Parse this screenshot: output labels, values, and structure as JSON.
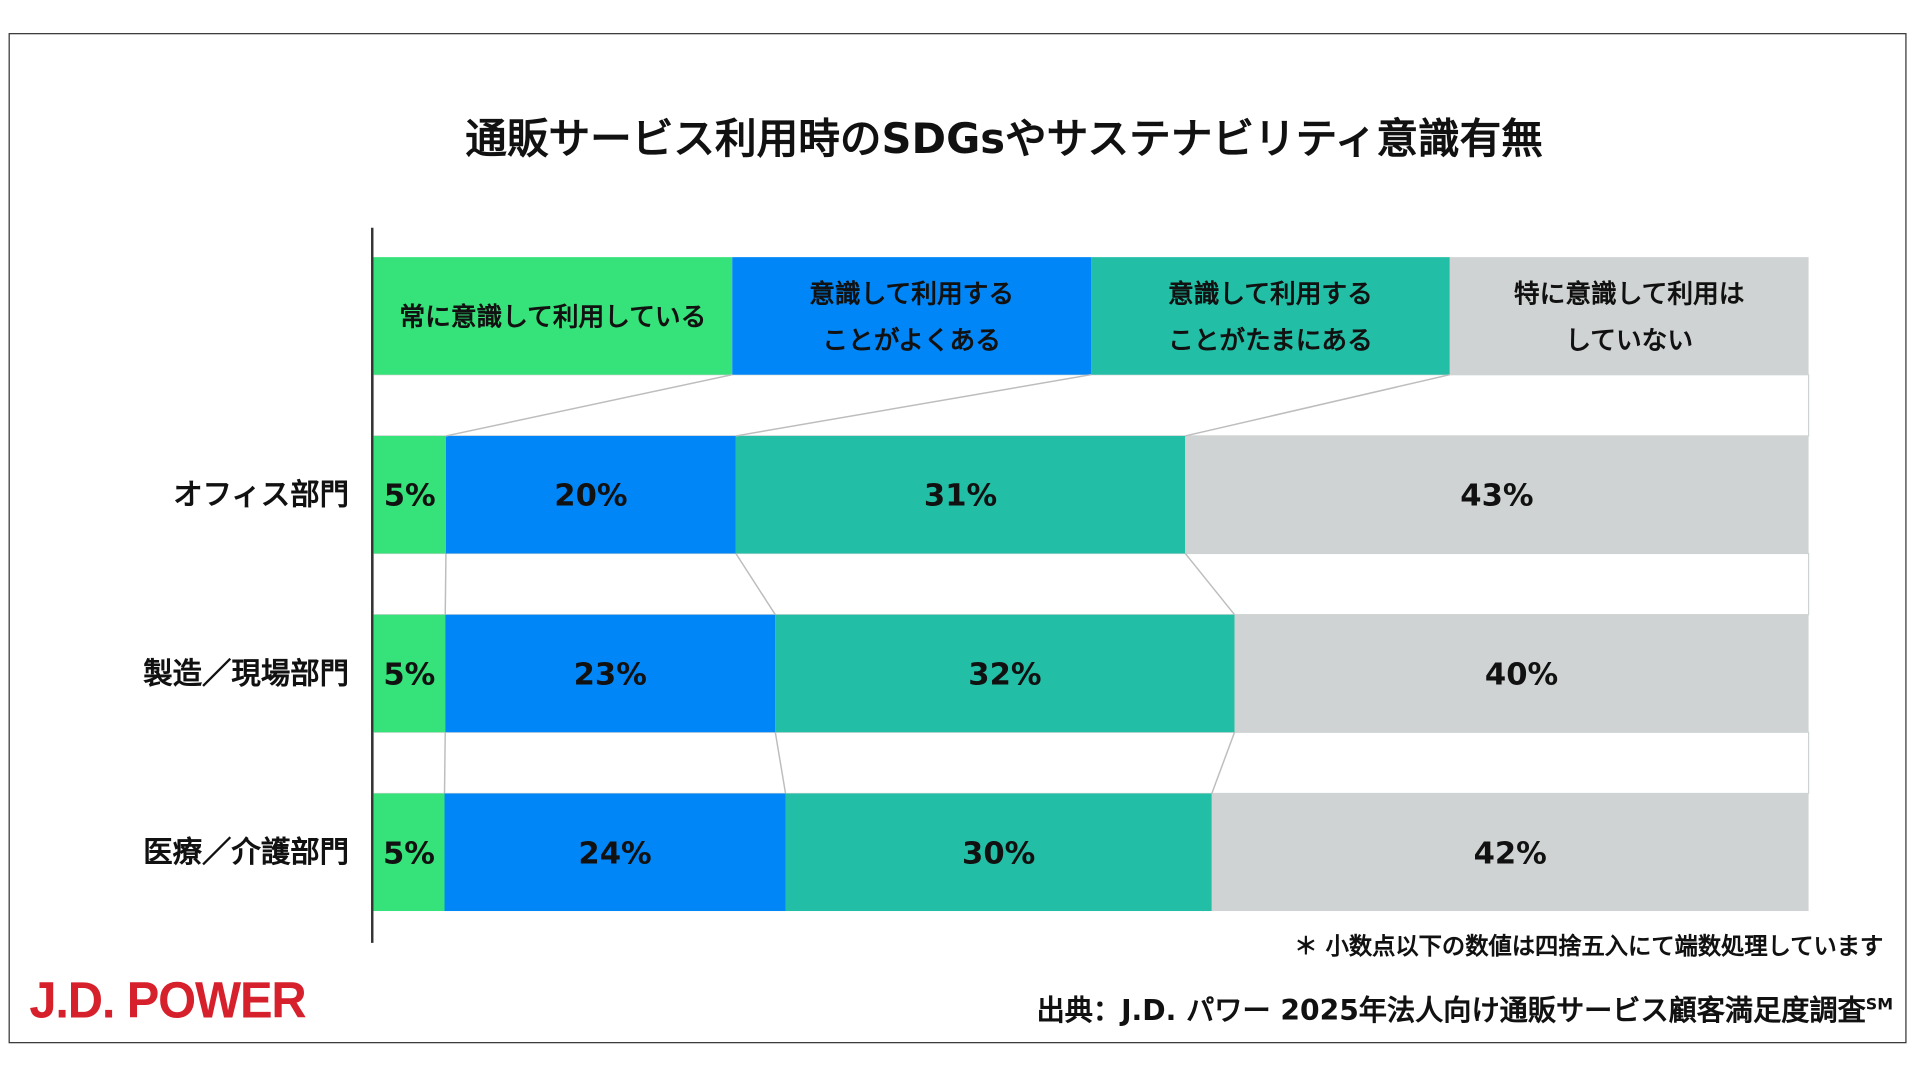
{
  "chart_data": {
    "type": "bar",
    "orientation": "horizontal-stacked-100",
    "title": "通販サービス利用時のSDGsやサステナビリティ意識有無",
    "legend": [
      {
        "label": [
          "常に意識して利用している"
        ],
        "color": "#36e27a"
      },
      {
        "label": [
          "意識して利用する",
          "ことがよくある"
        ],
        "color": "#0086f7"
      },
      {
        "label": [
          "意識して利用する",
          "ことがたまにある"
        ],
        "color": "#22bfa6"
      },
      {
        "label": [
          "特に意識して利用は",
          "していない"
        ],
        "color": "#d0d3d3"
      }
    ],
    "legend_placement": "top",
    "categories": [
      "オフィス部門",
      "製造／現場部門",
      "医療／介護部門"
    ],
    "series": [
      {
        "name": "常に意識して利用している",
        "values": [
          5,
          5,
          5
        ]
      },
      {
        "name": "意識して利用することがよくある",
        "values": [
          20,
          23,
          24
        ]
      },
      {
        "name": "意識して利用することがたまにある",
        "values": [
          31,
          32,
          30
        ]
      },
      {
        "name": "特に意識して利用はしていない",
        "values": [
          43,
          40,
          42
        ]
      }
    ],
    "value_suffix": "%"
  },
  "footnote": "＊ 小数点以下の数値は四捨五入にて端数処理しています",
  "source": {
    "text": "出典：J.D. パワー 2025年法人向け通販サービス顧客満足度調査",
    "mark": "SM"
  },
  "logo": "J.D. POWER"
}
